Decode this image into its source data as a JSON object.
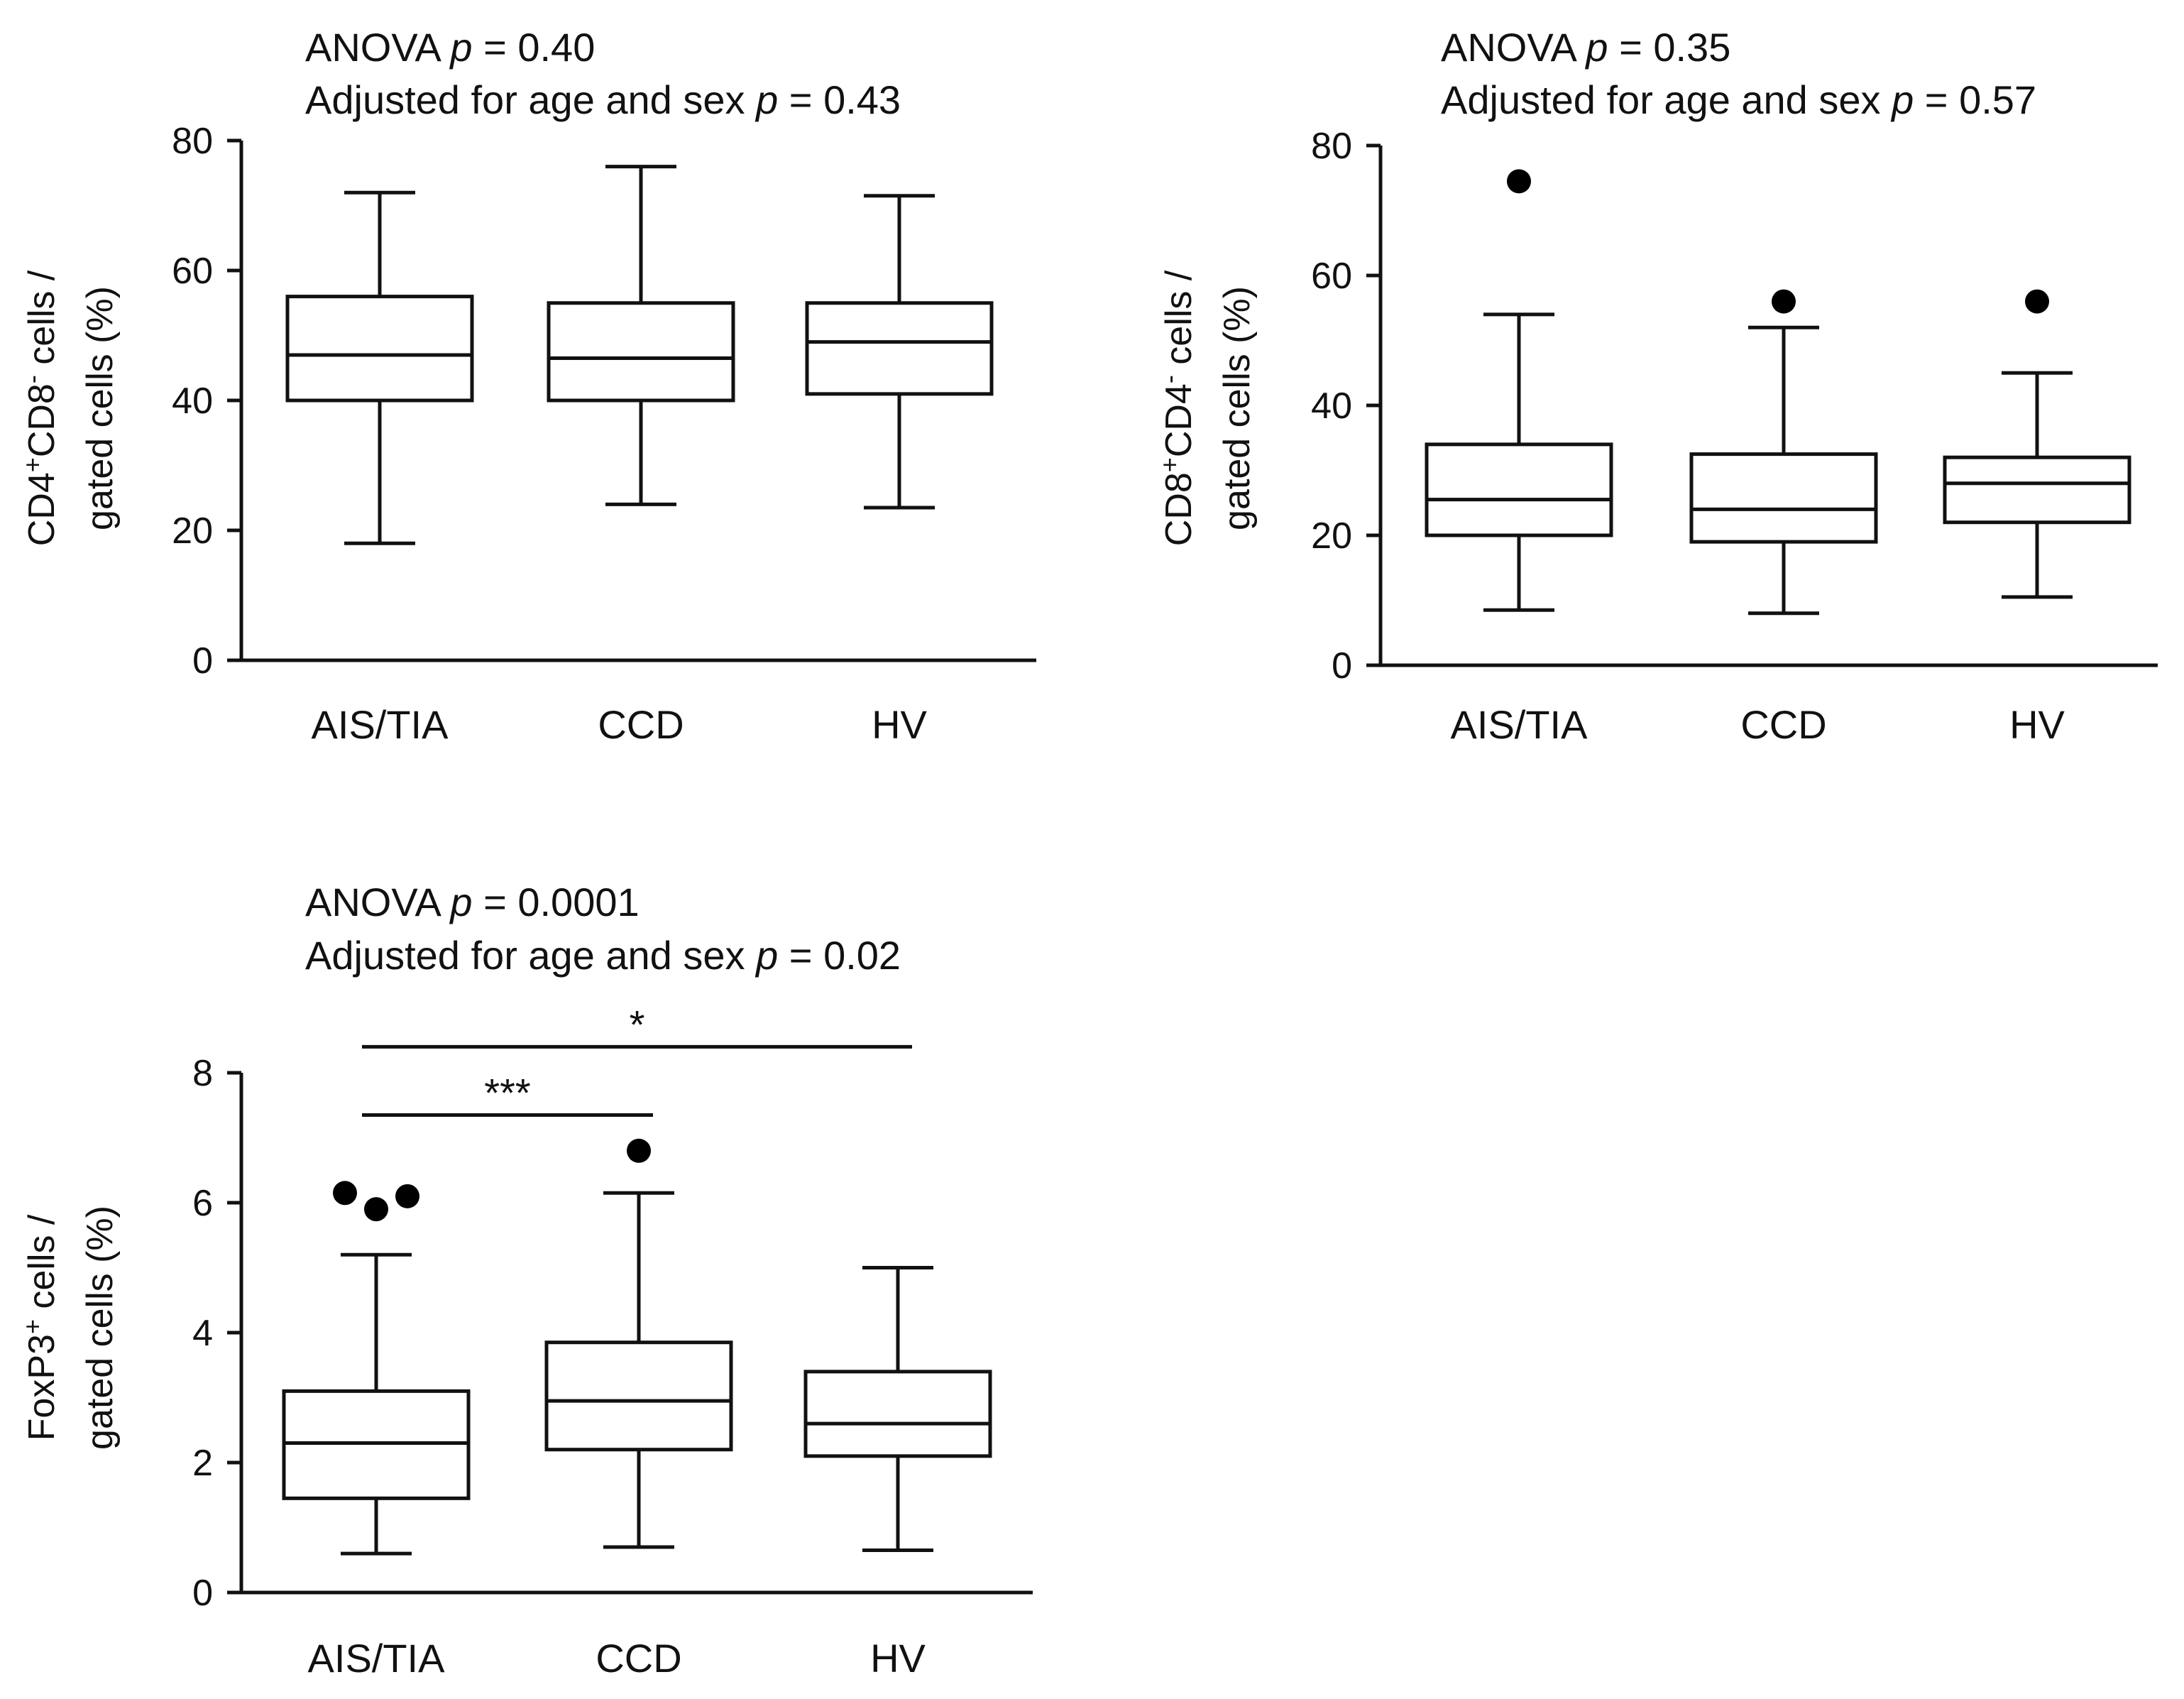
{
  "chart_data": [
    {
      "type": "box",
      "title_lines": [
        {
          "prefix": "ANOVA ",
          "p": "p",
          "suffix": " = 0.40"
        },
        {
          "prefix": "Adjusted for age and sex ",
          "p": "p",
          "suffix": " = 0.43"
        }
      ],
      "ylabel": {
        "line1": [
          {
            "t": "CD4"
          },
          {
            "t": "+",
            "sup": true
          },
          {
            "t": "CD8"
          },
          {
            "t": "-",
            "sup": true
          },
          {
            "t": " cells /"
          }
        ],
        "line2": "gated cells (%)"
      },
      "ylim": [
        0,
        80
      ],
      "yticks": [
        0,
        20,
        40,
        60,
        80
      ],
      "categories": [
        "AIS/TIA",
        "CCD",
        "HV"
      ],
      "boxes": [
        {
          "whisker_low": 18,
          "q1": 40,
          "median": 47,
          "q3": 56,
          "whisker_high": 72,
          "outliers": []
        },
        {
          "whisker_low": 24,
          "q1": 40,
          "median": 46.5,
          "q3": 55,
          "whisker_high": 76,
          "outliers": []
        },
        {
          "whisker_low": 23.5,
          "q1": 41,
          "median": 49,
          "q3": 55,
          "whisker_high": 71.5,
          "outliers": []
        }
      ],
      "brackets": []
    },
    {
      "type": "box",
      "title_lines": [
        {
          "prefix": "ANOVA ",
          "p": "p",
          "suffix": " = 0.35"
        },
        {
          "prefix": "Adjusted for age and sex ",
          "p": "p",
          "suffix": " = 0.57"
        }
      ],
      "ylabel": {
        "line1": [
          {
            "t": "CD8"
          },
          {
            "t": "+",
            "sup": true
          },
          {
            "t": "CD4"
          },
          {
            "t": "-",
            "sup": true
          },
          {
            "t": " cells /"
          }
        ],
        "line2": "gated cells (%)"
      },
      "ylim": [
        0,
        80
      ],
      "yticks": [
        0,
        20,
        40,
        60,
        80
      ],
      "categories": [
        "AIS/TIA",
        "CCD",
        "HV"
      ],
      "boxes": [
        {
          "whisker_low": 8.5,
          "q1": 20,
          "median": 25.5,
          "q3": 34,
          "whisker_high": 54,
          "outliers": [
            74.5
          ]
        },
        {
          "whisker_low": 8,
          "q1": 19,
          "median": 24,
          "q3": 32.5,
          "whisker_high": 52,
          "outliers": [
            56
          ]
        },
        {
          "whisker_low": 10.5,
          "q1": 22,
          "median": 28,
          "q3": 32,
          "whisker_high": 45,
          "outliers": [
            56
          ]
        }
      ],
      "brackets": []
    },
    {
      "type": "box",
      "title_lines": [
        {
          "prefix": "ANOVA ",
          "p": "p",
          "suffix": " = 0.0001"
        },
        {
          "prefix": "Adjusted for age and sex ",
          "p": "p",
          "suffix": " = 0.02"
        }
      ],
      "ylabel": {
        "line1": [
          {
            "t": "FoxP3"
          },
          {
            "t": "+",
            "sup": true
          },
          {
            "t": " cells /"
          }
        ],
        "line2": "gated cells (%)"
      },
      "ylim": [
        0,
        8
      ],
      "yticks": [
        0,
        2,
        4,
        6,
        8
      ],
      "categories": [
        "AIS/TIA",
        "CCD",
        "HV"
      ],
      "boxes": [
        {
          "whisker_low": 0.6,
          "q1": 1.45,
          "median": 2.3,
          "q3": 3.1,
          "whisker_high": 5.2,
          "outliers": [
            6.15,
            5.9,
            6.1
          ]
        },
        {
          "whisker_low": 0.7,
          "q1": 2.2,
          "median": 2.95,
          "q3": 3.85,
          "whisker_high": 6.15,
          "outliers": [
            6.8
          ]
        },
        {
          "whisker_low": 0.65,
          "q1": 2.1,
          "median": 2.6,
          "q3": 3.4,
          "whisker_high": 5.0,
          "outliers": []
        }
      ],
      "brackets": [
        {
          "from": 0,
          "to": 1,
          "y": 7.35,
          "label": "***"
        },
        {
          "from": 0,
          "to": 2,
          "y": 8.4,
          "label": "*"
        }
      ]
    }
  ]
}
